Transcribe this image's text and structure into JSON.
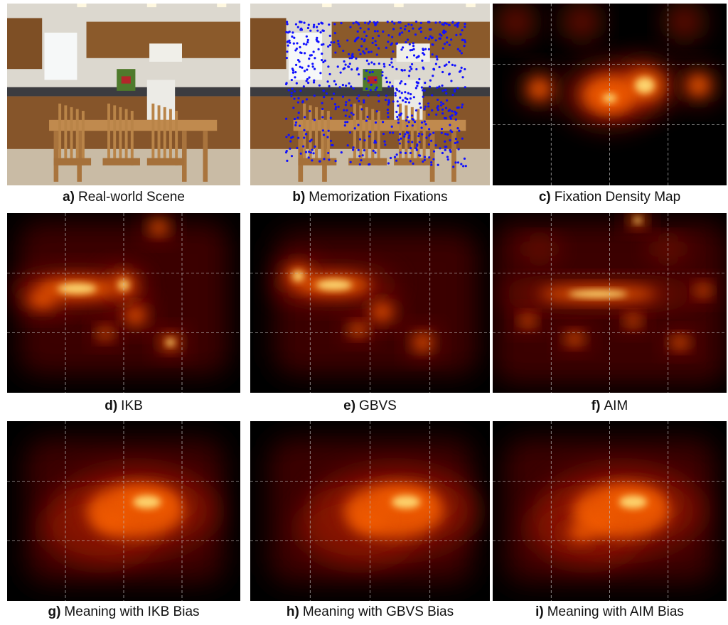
{
  "panels": [
    {
      "letter": "a)",
      "caption": "Real-world Scene"
    },
    {
      "letter": "b)",
      "caption": "Memorization Fixations"
    },
    {
      "letter": "c)",
      "caption": "Fixation Density Map"
    },
    {
      "letter": "d)",
      "caption": "IKB"
    },
    {
      "letter": "e)",
      "caption": "GBVS"
    },
    {
      "letter": "f)",
      "caption": "AIM"
    },
    {
      "letter": "g)",
      "caption": "Meaning with IKB Bias"
    },
    {
      "letter": "h)",
      "caption": "Meaning with GBVS Bias"
    },
    {
      "letter": "i)",
      "caption": "Meaning with AIM Bias"
    }
  ]
}
